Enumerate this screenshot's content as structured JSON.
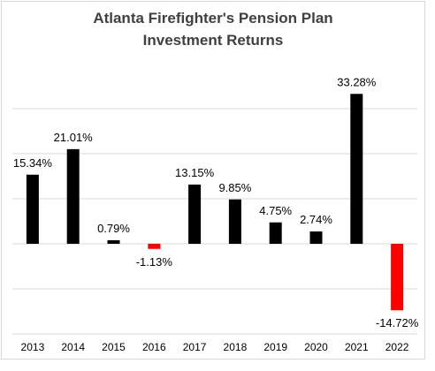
{
  "chart_data": {
    "type": "bar",
    "title": "Atlanta Firefighter's Pension Plan",
    "subtitle": "Investment Returns",
    "xlabel": "",
    "ylabel": "",
    "categories": [
      "2013",
      "2014",
      "2015",
      "2016",
      "2017",
      "2018",
      "2019",
      "2020",
      "2021",
      "2022"
    ],
    "values": [
      15.34,
      21.01,
      0.79,
      -1.13,
      13.15,
      9.85,
      4.75,
      2.74,
      33.28,
      -14.72
    ],
    "data_labels": [
      "15.34%",
      "21.01%",
      "0.79%",
      "-1.13%",
      "13.15%",
      "9.85%",
      "4.75%",
      "2.74%",
      "33.28%",
      "-14.72%"
    ],
    "ylim": [
      -20,
      35
    ],
    "yticks": [
      -20,
      -10,
      0,
      10,
      20,
      30
    ],
    "y_tick_labels_shown": false,
    "grid": "horizontal",
    "legend": "none",
    "colors": {
      "positive": "#000000",
      "negative": "#ff0000",
      "grid": "#d9d9d9",
      "title": "#404040"
    }
  }
}
